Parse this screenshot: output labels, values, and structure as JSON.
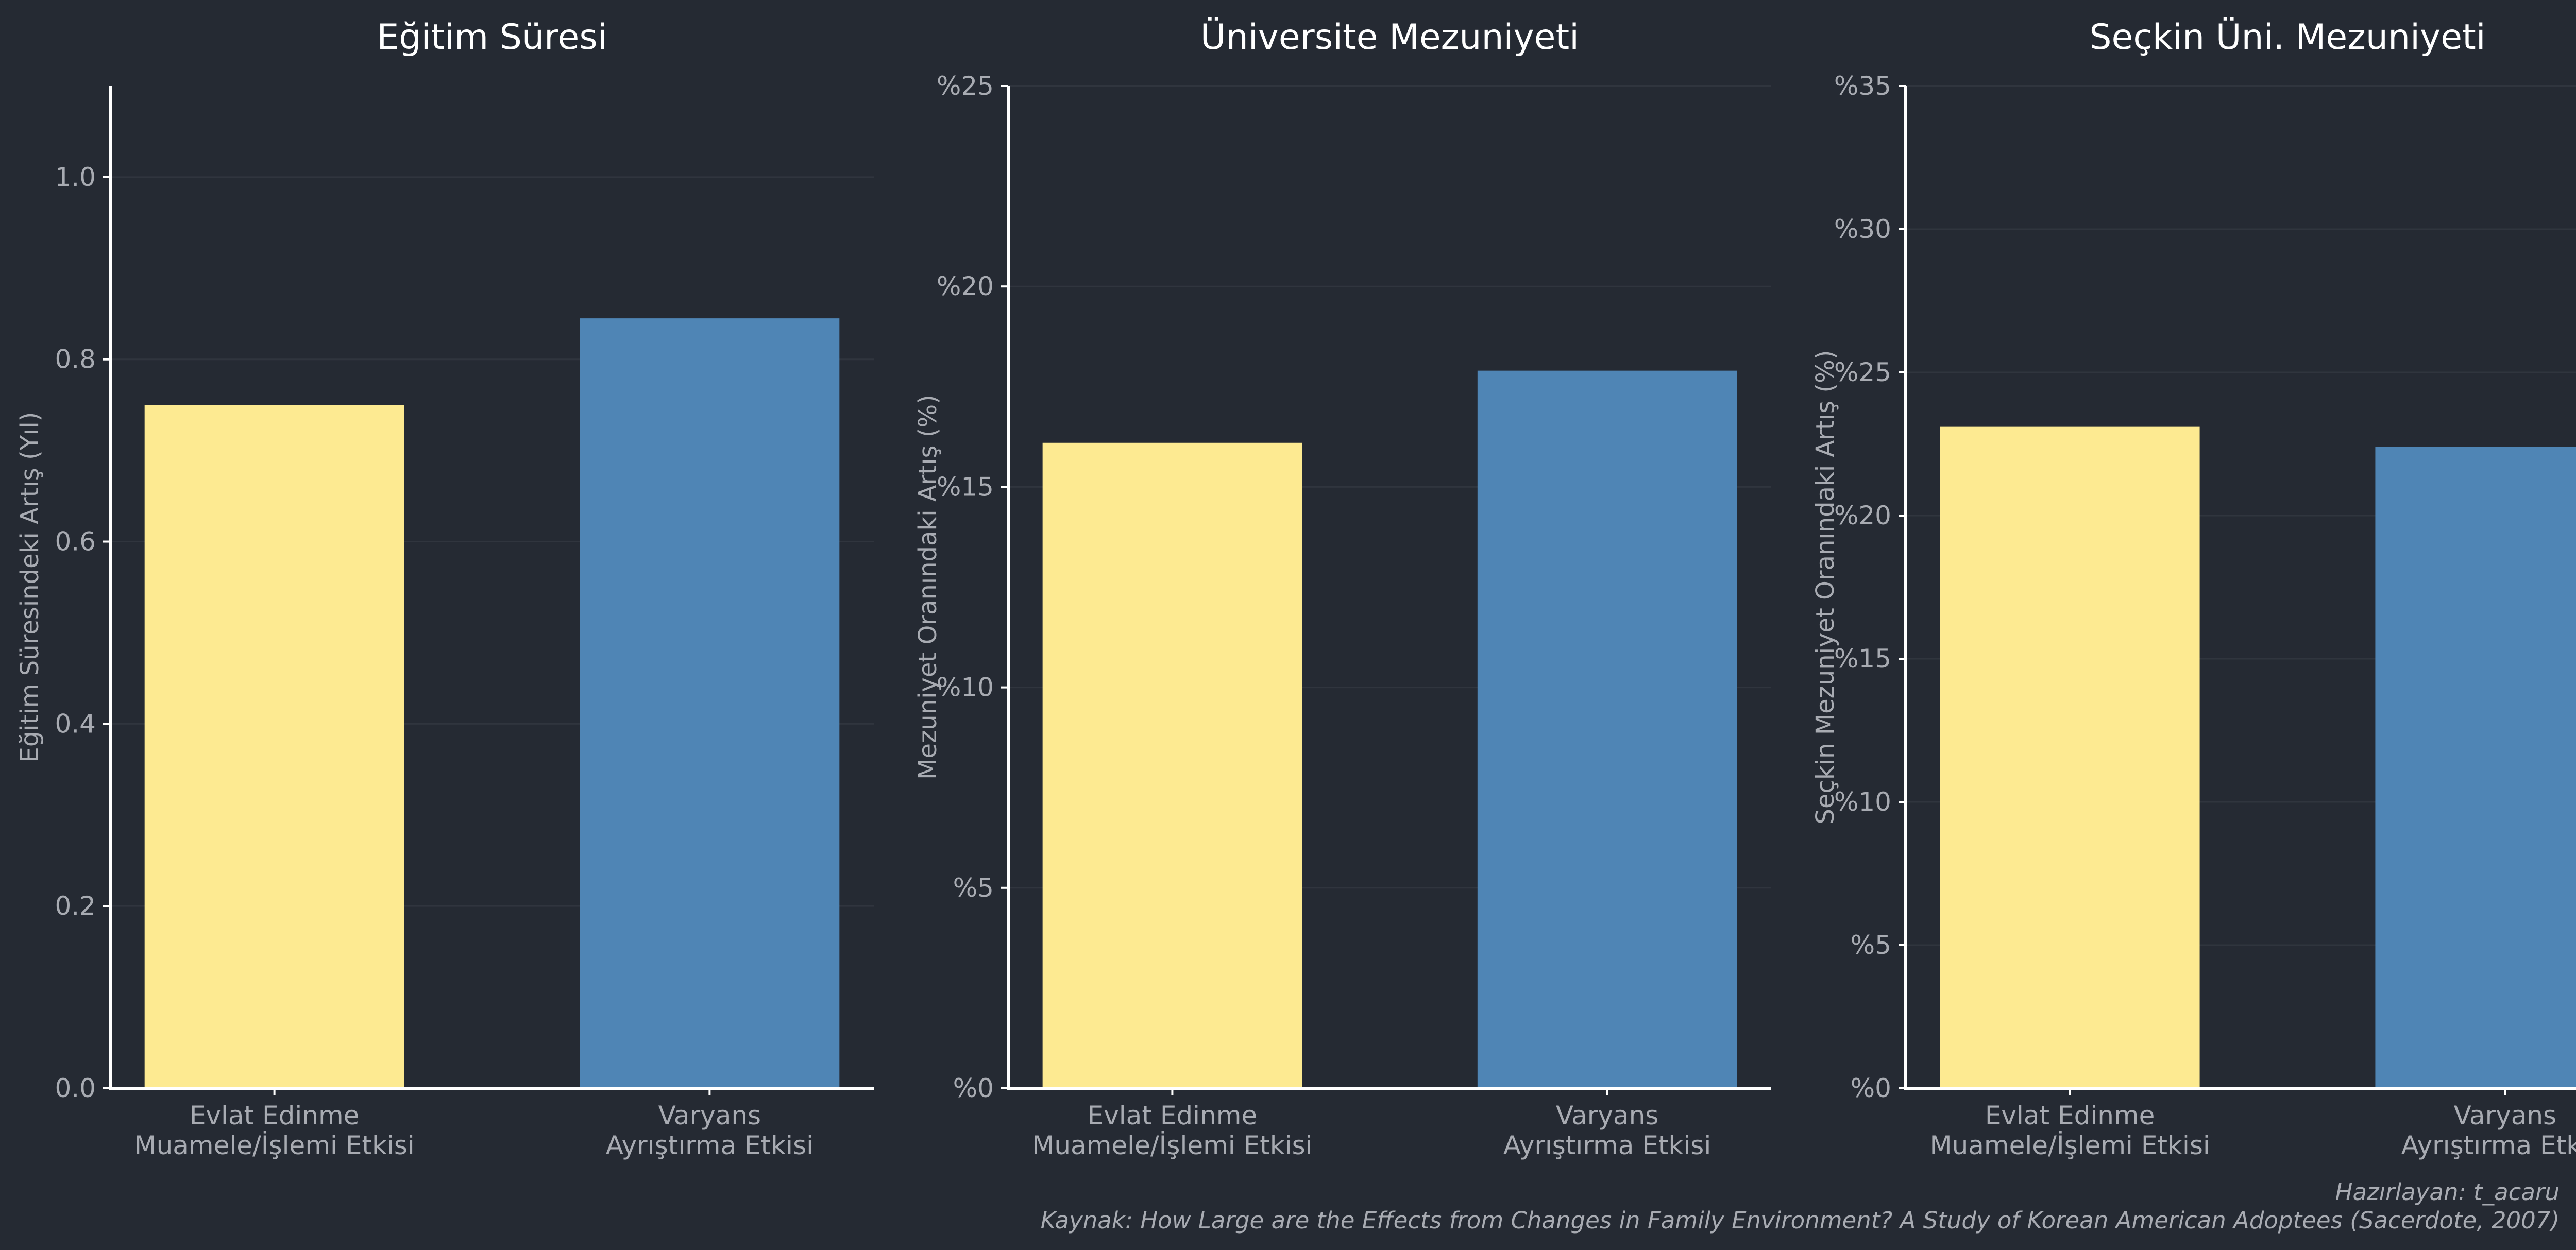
{
  "chart_data": [
    {
      "type": "bar",
      "title": "Eğitim Süresi",
      "ylabel": "Eğitim Süresindeki Artış (Yıl)",
      "ylim": [
        0,
        1.1
      ],
      "yticks": [
        0,
        0.2,
        0.4,
        0.6,
        0.8,
        1.0
      ],
      "ytick_labels": [
        "0.0",
        "0.2",
        "0.4",
        "0.6",
        "0.8",
        "1.0"
      ],
      "categories": [
        [
          "Evlat Edinme",
          "Muamele/İşlemi Etkisi"
        ],
        [
          "Varyans",
          "Ayrıştırma Etkisi"
        ]
      ],
      "values": [
        0.75,
        0.845
      ],
      "colors": [
        "#fdea91",
        "#4f85b5"
      ],
      "grid": true
    },
    {
      "type": "bar",
      "title": "Üniversite Mezuniyeti",
      "ylabel": "Mezuniyet Oranındaki Artış (%)",
      "ylim": [
        0,
        25
      ],
      "yticks": [
        0,
        5,
        10,
        15,
        20,
        25
      ],
      "ytick_labels": [
        "%0",
        "%5",
        "%10",
        "%15",
        "%20",
        "%25"
      ],
      "categories": [
        [
          "Evlat Edinme",
          "Muamele/İşlemi Etkisi"
        ],
        [
          "Varyans",
          "Ayrıştırma Etkisi"
        ]
      ],
      "values": [
        16.1,
        17.9
      ],
      "colors": [
        "#fdea91",
        "#4f85b5"
      ],
      "grid": true
    },
    {
      "type": "bar",
      "title": "Seçkin Üni. Mezuniyeti",
      "ylabel": "Seçkin Mezuniyet Oranındaki Artış (%)",
      "ylim": [
        0,
        35
      ],
      "yticks": [
        0,
        5,
        10,
        15,
        20,
        25,
        30,
        35
      ],
      "ytick_labels": [
        "%0",
        "%5",
        "%10",
        "%15",
        "%20",
        "%25",
        "%30",
        "%35"
      ],
      "categories": [
        [
          "Evlat Edinme",
          "Muamele/İşlemi Etkisi"
        ],
        [
          "Varyans",
          "Ayrıştırma Etkisi"
        ]
      ],
      "values": [
        23.1,
        22.4
      ],
      "colors": [
        "#fdea91",
        "#4f85b5"
      ],
      "grid": true
    }
  ],
  "footer": {
    "credit": "Hazırlayan: t_acaru",
    "source": "Kaynak: How Large are the Effects from Changes in Family Environment? A Study of Korean American Adoptees (Sacerdote, 2007)"
  },
  "colors": {
    "background": "#252a33",
    "grid": "#30353e",
    "text": "#a8abb2",
    "title": "#ffffff"
  }
}
